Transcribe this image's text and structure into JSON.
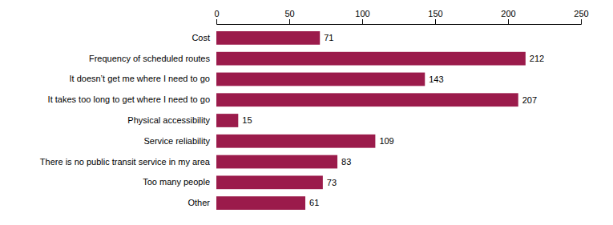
{
  "chart_data": {
    "type": "bar",
    "orientation": "horizontal",
    "categories": [
      "Other",
      "Too many people",
      "There is no public transit service in my area",
      "Service reliability",
      "Physical accessibility",
      "It takes too long to get where I need to go",
      "It doesn’t get me where I need to go",
      "Frequency of scheduled routes",
      "Cost"
    ],
    "values": [
      61,
      73,
      83,
      109,
      15,
      207,
      143,
      212,
      71
    ],
    "color": "#9b1b4b",
    "xlim": [
      0,
      250
    ],
    "xticks": [
      0,
      50,
      100,
      150,
      200,
      250
    ],
    "data_labels": true
  }
}
